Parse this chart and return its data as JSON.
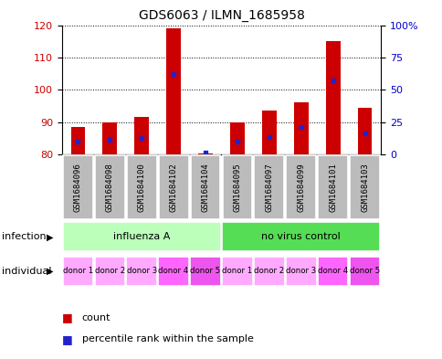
{
  "title": "GDS6063 / ILMN_1685958",
  "samples": [
    "GSM1684096",
    "GSM1684098",
    "GSM1684100",
    "GSM1684102",
    "GSM1684104",
    "GSM1684095",
    "GSM1684097",
    "GSM1684099",
    "GSM1684101",
    "GSM1684103"
  ],
  "red_values": [
    88.5,
    90.0,
    91.5,
    119.0,
    80.2,
    90.0,
    93.5,
    96.0,
    115.0,
    94.5
  ],
  "blue_values": [
    84.0,
    84.5,
    85.0,
    105.0,
    80.5,
    84.0,
    85.5,
    88.5,
    103.0,
    86.5
  ],
  "ylim": [
    80,
    120
  ],
  "yticks_left": [
    80,
    90,
    100,
    110,
    120
  ],
  "yticks_right_pct": [
    0,
    25,
    50,
    75,
    100
  ],
  "yright_labels": [
    "0",
    "25",
    "50",
    "75",
    "100%"
  ],
  "infection_groups": [
    {
      "label": "influenza A",
      "start": 0,
      "end": 5,
      "color": "#bbffbb"
    },
    {
      "label": "no virus control",
      "start": 5,
      "end": 10,
      "color": "#55dd55"
    }
  ],
  "individual_labels": [
    "donor 1",
    "donor 2",
    "donor 3",
    "donor 4",
    "donor 5",
    "donor 1",
    "donor 2",
    "donor 3",
    "donor 4",
    "donor 5"
  ],
  "ind_colors": [
    "#ffaaff",
    "#ffaaff",
    "#ffaaff",
    "#ff66ff",
    "#ee55ee",
    "#ffaaff",
    "#ffaaff",
    "#ffaaff",
    "#ff66ff",
    "#ee55ee"
  ],
  "bar_color": "#cc0000",
  "blue_color": "#2222cc",
  "sample_box_color": "#bbbbbb",
  "left_label_color": "#cc0000",
  "right_label_color": "#0000cc",
  "legend_count_color": "#cc0000",
  "legend_percentile_color": "#2222cc",
  "infection_label": "infection",
  "individual_label": "individual",
  "bar_width": 0.45
}
